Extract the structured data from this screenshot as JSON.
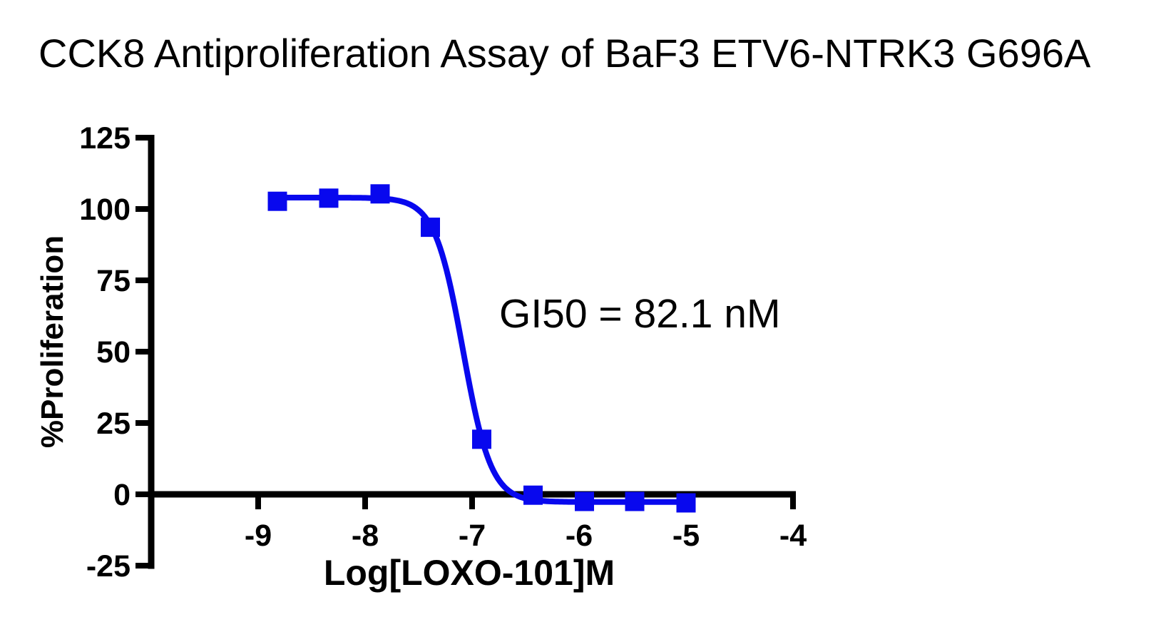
{
  "page": {
    "background_color": "#ffffff",
    "text_color": "#000000"
  },
  "chart_data": {
    "type": "scatter",
    "title": "CCK8 Antiproliferation Assay of BaF3 ETV6-NTRK3 G696A",
    "xlabel": "Log[LOXO-101]M",
    "ylabel": "%Proliferation",
    "annotation": "GI50 = 82.1 nM",
    "gi50_nM": 82.1,
    "series": [
      {
        "name": "BaF3 ETV6-NTRK3 G696A",
        "marker": "square",
        "color": "#0808ee",
        "x": [
          -8.82,
          -8.34,
          -7.86,
          -7.39,
          -6.91,
          -6.43,
          -5.95,
          -5.48,
          -5.0
        ],
        "y": [
          102.7,
          103.8,
          105.3,
          93.6,
          19.3,
          -0.3,
          -2.5,
          -2.5,
          -3.0
        ]
      }
    ],
    "fit_curve": {
      "model": "four-parameter-logistic",
      "top": 104.0,
      "bottom": -2.7,
      "log_gi50": -7.0857,
      "hill_slope": 3.3,
      "x_start": -8.82,
      "x_end": -5.0
    },
    "x_ticks": [
      -9,
      -8,
      -7,
      -6,
      -5,
      -4
    ],
    "y_ticks": [
      125,
      100,
      75,
      50,
      25,
      0,
      -25
    ],
    "xlim": [
      -10,
      -4
    ],
    "ylim": [
      -25,
      125
    ],
    "grid": false,
    "legend": "none",
    "axis_color": "#000000"
  }
}
